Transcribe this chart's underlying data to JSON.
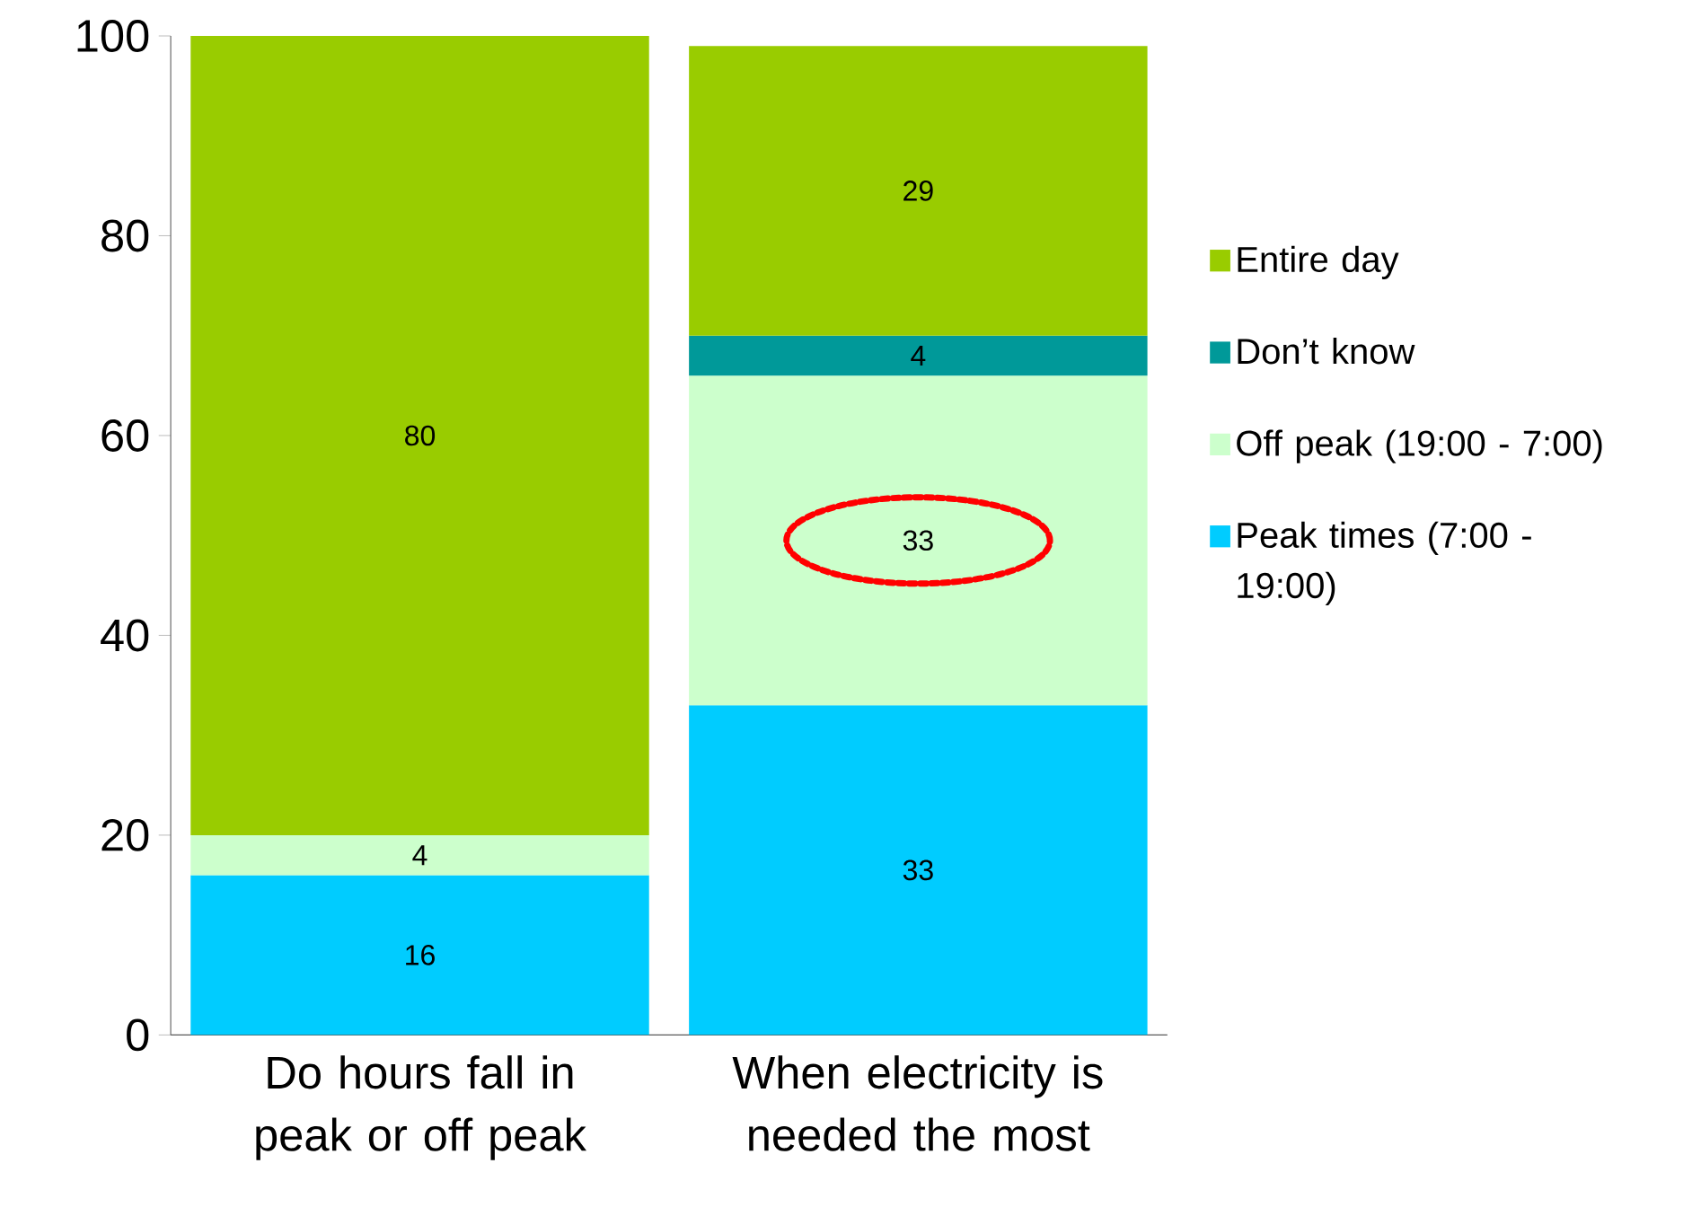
{
  "chart_data": {
    "type": "bar",
    "stacked": true,
    "categories": [
      "Do hours fall in peak or off peak",
      "When electricity is needed the most"
    ],
    "series": [
      {
        "name": "Peak times (7:00 - 19:00)",
        "color": "#00ccff",
        "values": [
          16,
          33
        ]
      },
      {
        "name": "Off peak (19:00 - 7:00)",
        "color": "#ccffcc",
        "values": [
          4,
          33
        ]
      },
      {
        "name": "Don’t know",
        "color": "#009999",
        "values": [
          null,
          4
        ]
      },
      {
        "name": "Entire day",
        "color": "#99cc00",
        "values": [
          80,
          29
        ]
      }
    ],
    "ylim": [
      0,
      100
    ],
    "yticks": [
      0,
      20,
      40,
      60,
      80,
      100
    ],
    "grid": false,
    "legend": "right",
    "data_labels": true
  }
}
